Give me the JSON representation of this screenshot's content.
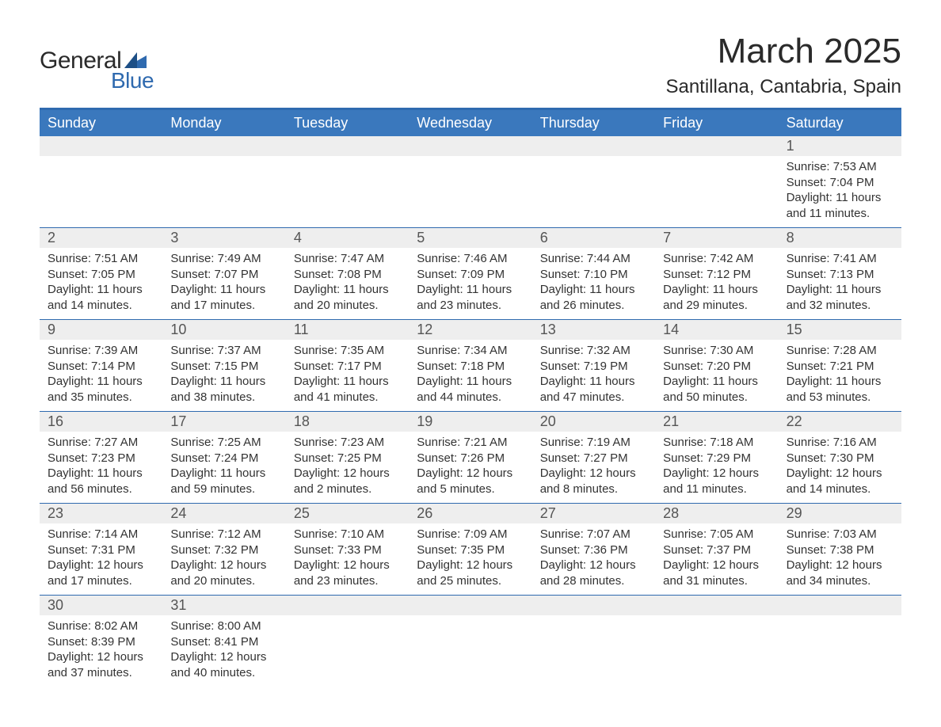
{
  "logo": {
    "word1": "General",
    "word2": "Blue",
    "text_color": "#2a2a2a",
    "accent_color": "#2f6aaf"
  },
  "title": "March 2025",
  "subtitle": "Santillana, Cantabria, Spain",
  "colors": {
    "header_bg": "#3a78bd",
    "header_text": "#ffffff",
    "daynum_bg": "#eeeeee",
    "border": "#2f6aaf",
    "text": "#333333",
    "background": "#ffffff"
  },
  "typography": {
    "title_fontsize": 44,
    "subtitle_fontsize": 24,
    "header_fontsize": 18,
    "daynum_fontsize": 18,
    "body_fontsize": 15
  },
  "layout": {
    "columns": 7,
    "weeks": 6
  },
  "day_headers": [
    "Sunday",
    "Monday",
    "Tuesday",
    "Wednesday",
    "Thursday",
    "Friday",
    "Saturday"
  ],
  "label_sunrise": "Sunrise: ",
  "label_sunset": "Sunset: ",
  "label_daylight": "Daylight: ",
  "weeks": [
    [
      {
        "n": "",
        "sr": "",
        "ss": "",
        "dl": ""
      },
      {
        "n": "",
        "sr": "",
        "ss": "",
        "dl": ""
      },
      {
        "n": "",
        "sr": "",
        "ss": "",
        "dl": ""
      },
      {
        "n": "",
        "sr": "",
        "ss": "",
        "dl": ""
      },
      {
        "n": "",
        "sr": "",
        "ss": "",
        "dl": ""
      },
      {
        "n": "",
        "sr": "",
        "ss": "",
        "dl": ""
      },
      {
        "n": "1",
        "sr": "7:53 AM",
        "ss": "7:04 PM",
        "dl": "11 hours and 11 minutes."
      }
    ],
    [
      {
        "n": "2",
        "sr": "7:51 AM",
        "ss": "7:05 PM",
        "dl": "11 hours and 14 minutes."
      },
      {
        "n": "3",
        "sr": "7:49 AM",
        "ss": "7:07 PM",
        "dl": "11 hours and 17 minutes."
      },
      {
        "n": "4",
        "sr": "7:47 AM",
        "ss": "7:08 PM",
        "dl": "11 hours and 20 minutes."
      },
      {
        "n": "5",
        "sr": "7:46 AM",
        "ss": "7:09 PM",
        "dl": "11 hours and 23 minutes."
      },
      {
        "n": "6",
        "sr": "7:44 AM",
        "ss": "7:10 PM",
        "dl": "11 hours and 26 minutes."
      },
      {
        "n": "7",
        "sr": "7:42 AM",
        "ss": "7:12 PM",
        "dl": "11 hours and 29 minutes."
      },
      {
        "n": "8",
        "sr": "7:41 AM",
        "ss": "7:13 PM",
        "dl": "11 hours and 32 minutes."
      }
    ],
    [
      {
        "n": "9",
        "sr": "7:39 AM",
        "ss": "7:14 PM",
        "dl": "11 hours and 35 minutes."
      },
      {
        "n": "10",
        "sr": "7:37 AM",
        "ss": "7:15 PM",
        "dl": "11 hours and 38 minutes."
      },
      {
        "n": "11",
        "sr": "7:35 AM",
        "ss": "7:17 PM",
        "dl": "11 hours and 41 minutes."
      },
      {
        "n": "12",
        "sr": "7:34 AM",
        "ss": "7:18 PM",
        "dl": "11 hours and 44 minutes."
      },
      {
        "n": "13",
        "sr": "7:32 AM",
        "ss": "7:19 PM",
        "dl": "11 hours and 47 minutes."
      },
      {
        "n": "14",
        "sr": "7:30 AM",
        "ss": "7:20 PM",
        "dl": "11 hours and 50 minutes."
      },
      {
        "n": "15",
        "sr": "7:28 AM",
        "ss": "7:21 PM",
        "dl": "11 hours and 53 minutes."
      }
    ],
    [
      {
        "n": "16",
        "sr": "7:27 AM",
        "ss": "7:23 PM",
        "dl": "11 hours and 56 minutes."
      },
      {
        "n": "17",
        "sr": "7:25 AM",
        "ss": "7:24 PM",
        "dl": "11 hours and 59 minutes."
      },
      {
        "n": "18",
        "sr": "7:23 AM",
        "ss": "7:25 PM",
        "dl": "12 hours and 2 minutes."
      },
      {
        "n": "19",
        "sr": "7:21 AM",
        "ss": "7:26 PM",
        "dl": "12 hours and 5 minutes."
      },
      {
        "n": "20",
        "sr": "7:19 AM",
        "ss": "7:27 PM",
        "dl": "12 hours and 8 minutes."
      },
      {
        "n": "21",
        "sr": "7:18 AM",
        "ss": "7:29 PM",
        "dl": "12 hours and 11 minutes."
      },
      {
        "n": "22",
        "sr": "7:16 AM",
        "ss": "7:30 PM",
        "dl": "12 hours and 14 minutes."
      }
    ],
    [
      {
        "n": "23",
        "sr": "7:14 AM",
        "ss": "7:31 PM",
        "dl": "12 hours and 17 minutes."
      },
      {
        "n": "24",
        "sr": "7:12 AM",
        "ss": "7:32 PM",
        "dl": "12 hours and 20 minutes."
      },
      {
        "n": "25",
        "sr": "7:10 AM",
        "ss": "7:33 PM",
        "dl": "12 hours and 23 minutes."
      },
      {
        "n": "26",
        "sr": "7:09 AM",
        "ss": "7:35 PM",
        "dl": "12 hours and 25 minutes."
      },
      {
        "n": "27",
        "sr": "7:07 AM",
        "ss": "7:36 PM",
        "dl": "12 hours and 28 minutes."
      },
      {
        "n": "28",
        "sr": "7:05 AM",
        "ss": "7:37 PM",
        "dl": "12 hours and 31 minutes."
      },
      {
        "n": "29",
        "sr": "7:03 AM",
        "ss": "7:38 PM",
        "dl": "12 hours and 34 minutes."
      }
    ],
    [
      {
        "n": "30",
        "sr": "8:02 AM",
        "ss": "8:39 PM",
        "dl": "12 hours and 37 minutes."
      },
      {
        "n": "31",
        "sr": "8:00 AM",
        "ss": "8:41 PM",
        "dl": "12 hours and 40 minutes."
      },
      {
        "n": "",
        "sr": "",
        "ss": "",
        "dl": ""
      },
      {
        "n": "",
        "sr": "",
        "ss": "",
        "dl": ""
      },
      {
        "n": "",
        "sr": "",
        "ss": "",
        "dl": ""
      },
      {
        "n": "",
        "sr": "",
        "ss": "",
        "dl": ""
      },
      {
        "n": "",
        "sr": "",
        "ss": "",
        "dl": ""
      }
    ]
  ]
}
